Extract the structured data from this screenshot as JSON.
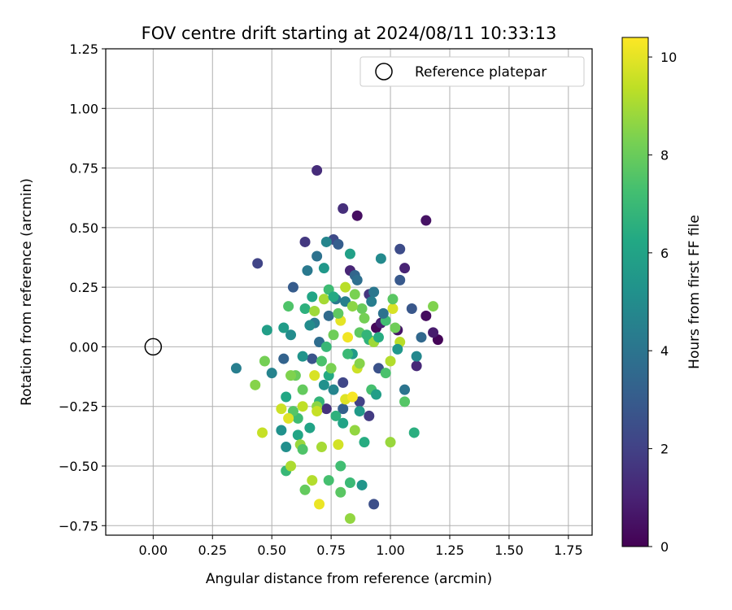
{
  "chart_data": {
    "type": "scatter",
    "title": "FOV centre drift starting at 2024/08/11 10:33:13",
    "xlabel": "Angular distance from reference (arcmin)",
    "ylabel": "Rotation from reference (arcmin)",
    "xlim": [
      -0.2,
      1.85
    ],
    "ylim": [
      -0.79,
      1.25
    ],
    "x_ticks": [
      "0.00",
      "0.25",
      "0.50",
      "0.75",
      "1.00",
      "1.25",
      "1.50",
      "1.75"
    ],
    "x_tick_values": [
      0,
      0.25,
      0.5,
      0.75,
      1.0,
      1.25,
      1.5,
      1.75
    ],
    "y_ticks": [
      "−0.75",
      "−0.50",
      "−0.25",
      "0.00",
      "0.25",
      "0.50",
      "0.75",
      "1.00",
      "1.25"
    ],
    "y_tick_values": [
      -0.75,
      -0.5,
      -0.25,
      0,
      0.25,
      0.5,
      0.75,
      1.0,
      1.25
    ],
    "grid": true,
    "legend": {
      "position": "top-right",
      "entries": [
        "Reference platepar"
      ]
    },
    "colorbar": {
      "label": "Hours from first FF file",
      "colormap": "viridis",
      "range": [
        0,
        10.4
      ],
      "ticks": [
        "0",
        "2",
        "4",
        "6",
        "8",
        "10"
      ],
      "tick_values": [
        0,
        2,
        4,
        6,
        8,
        10
      ]
    },
    "reference_point": {
      "name": "Reference platepar",
      "x": 0.0,
      "y": 0.0
    },
    "series": [
      {
        "points": [
          [
            1.2,
            0.03,
            0.1
          ],
          [
            0.94,
            0.08,
            0.2
          ],
          [
            1.15,
            0.13,
            0.3
          ],
          [
            0.86,
            0.55,
            0.4
          ],
          [
            1.15,
            0.53,
            0.5
          ],
          [
            1.03,
            0.07,
            0.6
          ],
          [
            1.18,
            0.06,
            0.8
          ],
          [
            0.96,
            0.1,
            0.9
          ],
          [
            1.06,
            0.33,
            1.0
          ],
          [
            0.83,
            0.32,
            1.1
          ],
          [
            1.11,
            -0.08,
            1.2
          ],
          [
            0.69,
            0.74,
            1.3
          ],
          [
            0.8,
            0.58,
            1.4
          ],
          [
            0.73,
            -0.26,
            1.5
          ],
          [
            0.91,
            0.22,
            1.6
          ],
          [
            0.64,
            0.44,
            1.7
          ],
          [
            0.91,
            -0.29,
            1.8
          ],
          [
            0.87,
            -0.23,
            2.0
          ],
          [
            0.44,
            0.35,
            2.1
          ],
          [
            0.8,
            -0.15,
            2.2
          ],
          [
            0.76,
            0.45,
            2.3
          ],
          [
            1.04,
            0.41,
            2.4
          ],
          [
            0.93,
            -0.66,
            2.5
          ],
          [
            0.95,
            -0.09,
            2.6
          ],
          [
            0.67,
            -0.05,
            2.7
          ],
          [
            1.09,
            0.16,
            2.8
          ],
          [
            1.04,
            0.28,
            2.9
          ],
          [
            0.59,
            0.25,
            3.0
          ],
          [
            0.78,
            0.43,
            3.1
          ],
          [
            0.8,
            -0.26,
            3.2
          ],
          [
            0.55,
            -0.05,
            3.3
          ],
          [
            0.85,
            0.3,
            3.4
          ],
          [
            1.13,
            0.04,
            3.5
          ],
          [
            0.74,
            0.13,
            3.6
          ],
          [
            0.7,
            0.02,
            3.7
          ],
          [
            0.86,
            0.28,
            3.8
          ],
          [
            0.69,
            0.38,
            3.9
          ],
          [
            1.06,
            -0.18,
            4.0
          ],
          [
            0.93,
            0.23,
            4.1
          ],
          [
            0.65,
            0.32,
            4.2
          ],
          [
            0.68,
            0.1,
            4.3
          ],
          [
            0.35,
            -0.09,
            4.4
          ],
          [
            0.81,
            0.19,
            4.5
          ],
          [
            0.5,
            -0.11,
            4.6
          ],
          [
            0.73,
            0.44,
            4.7
          ],
          [
            1.11,
            -0.04,
            4.8
          ],
          [
            0.96,
            0.37,
            4.9
          ],
          [
            0.58,
            0.05,
            5.0
          ],
          [
            0.56,
            -0.42,
            5.1
          ],
          [
            0.54,
            -0.35,
            5.2
          ],
          [
            0.63,
            -0.04,
            5.3
          ],
          [
            0.88,
            -0.58,
            5.4
          ],
          [
            0.72,
            0.33,
            5.5
          ],
          [
            0.84,
            -0.03,
            5.6
          ],
          [
            0.55,
            0.08,
            5.7
          ],
          [
            0.48,
            0.07,
            5.8
          ],
          [
            0.83,
            0.39,
            5.9
          ],
          [
            0.8,
            -0.32,
            6.0
          ],
          [
            0.61,
            -0.37,
            6.1
          ],
          [
            0.56,
            -0.21,
            6.2
          ],
          [
            0.74,
            -0.12,
            6.3
          ],
          [
            0.89,
            -0.4,
            6.4
          ],
          [
            1.1,
            -0.36,
            6.5
          ],
          [
            0.64,
            0.16,
            6.6
          ],
          [
            0.91,
            0.03,
            6.7
          ],
          [
            0.7,
            -0.23,
            6.8
          ],
          [
            0.56,
            -0.52,
            6.9
          ],
          [
            0.83,
            -0.57,
            7.0
          ],
          [
            0.61,
            -0.3,
            7.1
          ],
          [
            0.98,
            0.11,
            7.2
          ],
          [
            0.74,
            -0.56,
            7.3
          ],
          [
            0.71,
            -0.06,
            7.4
          ],
          [
            0.57,
            0.17,
            7.5
          ],
          [
            1.06,
            -0.23,
            7.6
          ],
          [
            0.79,
            -0.61,
            7.7
          ],
          [
            0.87,
            0.06,
            7.8
          ],
          [
            0.64,
            -0.6,
            7.9
          ],
          [
            0.6,
            -0.12,
            8.0
          ],
          [
            0.76,
            0.05,
            8.1
          ],
          [
            0.47,
            -0.06,
            8.2
          ],
          [
            0.85,
            0.22,
            8.3
          ],
          [
            1.18,
            0.17,
            8.4
          ],
          [
            0.43,
            -0.16,
            8.5
          ],
          [
            0.69,
            -0.25,
            8.6
          ],
          [
            0.83,
            -0.72,
            8.7
          ],
          [
            1.0,
            -0.4,
            8.8
          ],
          [
            0.93,
            0.02,
            8.9
          ],
          [
            0.72,
            0.2,
            9.0
          ],
          [
            0.58,
            -0.5,
            9.1
          ],
          [
            0.67,
            -0.56,
            9.2
          ],
          [
            1.04,
            0.02,
            9.3
          ],
          [
            0.63,
            -0.25,
            9.4
          ],
          [
            0.46,
            -0.36,
            9.5
          ],
          [
            0.86,
            -0.09,
            9.6
          ],
          [
            0.78,
            -0.41,
            9.7
          ],
          [
            1.01,
            0.16,
            9.8
          ],
          [
            0.81,
            -0.22,
            9.9
          ],
          [
            0.79,
            0.11,
            10.0
          ],
          [
            0.7,
            -0.66,
            10.1
          ],
          [
            0.82,
            0.04,
            10.2
          ],
          [
            0.84,
            -0.21,
            10.3
          ],
          [
            0.77,
            0.2,
            4.2
          ],
          [
            0.59,
            -0.27,
            7.6
          ],
          [
            0.88,
            0.16,
            8.0
          ],
          [
            0.67,
            0.21,
            6.1
          ],
          [
            0.73,
            0.0,
            6.9
          ],
          [
            0.92,
            -0.18,
            7.3
          ],
          [
            0.97,
            0.14,
            3.9
          ],
          [
            0.78,
            0.14,
            7.8
          ],
          [
            0.62,
            -0.41,
            8.8
          ],
          [
            1.03,
            -0.01,
            5.5
          ],
          [
            0.69,
            -0.27,
            9.5
          ],
          [
            0.76,
            -0.18,
            4.7
          ],
          [
            0.66,
            0.09,
            5.0
          ],
          [
            0.85,
            -0.35,
            8.7
          ],
          [
            0.95,
            0.04,
            6.4
          ],
          [
            0.74,
            0.24,
            7.1
          ],
          [
            1.0,
            -0.06,
            9.2
          ],
          [
            0.58,
            -0.12,
            8.4
          ],
          [
            0.81,
            0.25,
            9.3
          ],
          [
            0.63,
            -0.18,
            7.9
          ],
          [
            0.89,
            0.12,
            8.2
          ],
          [
            0.71,
            -0.42,
            9.0
          ],
          [
            0.77,
            -0.29,
            6.6
          ],
          [
            0.94,
            -0.2,
            5.8
          ],
          [
            0.87,
            -0.07,
            8.5
          ],
          [
            0.54,
            -0.26,
            9.6
          ],
          [
            0.68,
            0.15,
            8.9
          ],
          [
            1.01,
            0.2,
            7.7
          ],
          [
            0.79,
            -0.5,
            7.2
          ],
          [
            0.92,
            0.19,
            4.4
          ],
          [
            0.66,
            -0.34,
            6.0
          ],
          [
            0.84,
            0.17,
            8.6
          ],
          [
            0.72,
            -0.16,
            5.2
          ],
          [
            0.57,
            -0.3,
            9.9
          ],
          [
            0.98,
            -0.11,
            7.4
          ],
          [
            0.76,
            0.21,
            6.3
          ],
          [
            0.87,
            -0.27,
            5.6
          ],
          [
            1.02,
            0.08,
            8.1
          ],
          [
            0.63,
            -0.43,
            7.5
          ],
          [
            0.75,
            -0.09,
            8.3
          ],
          [
            0.82,
            -0.03,
            7.0
          ],
          [
            0.68,
            -0.12,
            9.8
          ],
          [
            0.9,
            0.05,
            6.8
          ]
        ]
      }
    ]
  }
}
